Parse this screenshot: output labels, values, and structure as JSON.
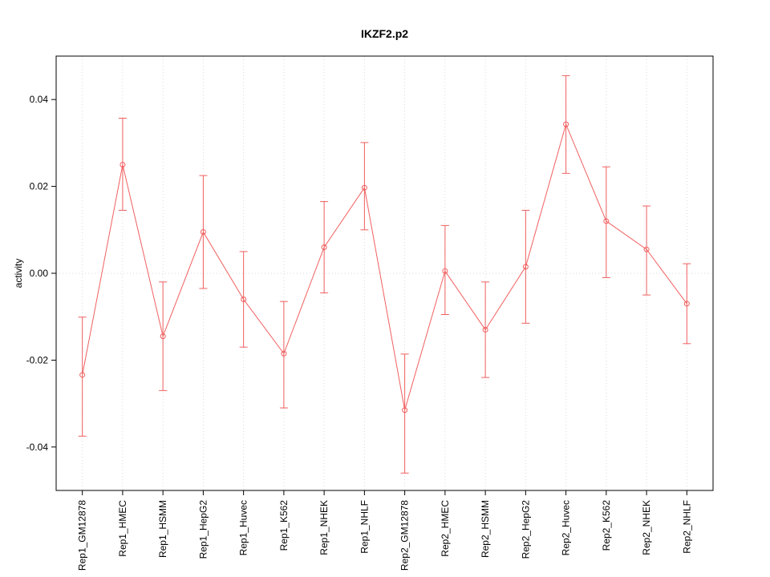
{
  "chart_data": {
    "type": "line",
    "title": "IKZF2.p2",
    "ylabel": "activity",
    "xlabel": "",
    "ylim": [
      -0.05,
      0.05
    ],
    "yticks": [
      -0.04,
      -0.02,
      0.0,
      0.02,
      0.04
    ],
    "ytick_labels": [
      "-0.04",
      "-0.02",
      "0.00",
      "0.02",
      "0.04"
    ],
    "categories": [
      "Rep1_GM12878",
      "Rep1_HMEC",
      "Rep1_HSMM",
      "Rep1_HepG2",
      "Rep1_Huvec",
      "Rep1_K562",
      "Rep1_NHEK",
      "Rep1_NHLF",
      "Rep2_GM12878",
      "Rep2_HMEC",
      "Rep2_HSMM",
      "Rep2_HepG2",
      "Rep2_Huvec",
      "Rep2_K562",
      "Rep2_NHEK",
      "Rep2_NHLF"
    ],
    "series": [
      {
        "name": "activity",
        "values": [
          -0.0234,
          0.025,
          -0.0145,
          0.0095,
          -0.006,
          -0.0185,
          0.006,
          0.0197,
          -0.0315,
          0.0005,
          -0.013,
          0.0015,
          0.0343,
          0.012,
          0.0055,
          -0.007
        ],
        "error_low": [
          -0.0375,
          0.0145,
          -0.027,
          -0.0035,
          -0.017,
          -0.031,
          -0.0045,
          0.01,
          -0.046,
          -0.0095,
          -0.024,
          -0.0115,
          0.023,
          -0.001,
          -0.005,
          -0.0162
        ],
        "error_high": [
          -0.0101,
          0.0357,
          -0.002,
          0.0225,
          0.005,
          -0.0065,
          0.0165,
          0.0301,
          -0.0186,
          0.011,
          -0.002,
          0.0145,
          0.0455,
          0.0245,
          0.0155,
          0.0022
        ]
      }
    ],
    "zero_line": 0,
    "grid": "vertical-dotted",
    "legend": "none",
    "series_color": "#f15f5f",
    "grid_color": "#d9d9d9",
    "frame_color": "#000000",
    "marker": "open-circle"
  }
}
